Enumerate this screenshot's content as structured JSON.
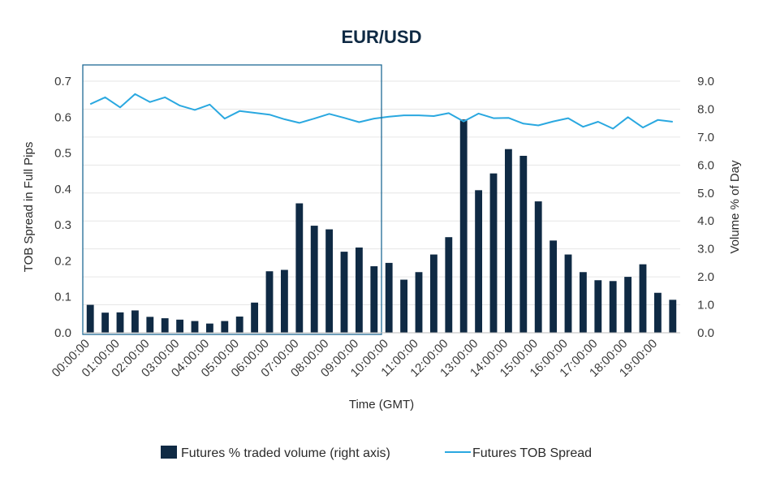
{
  "chart_data": {
    "type": "bar+line",
    "title": "EUR/USD",
    "xlabel": "Time (GMT)",
    "ylabel_left": "TOB Spread in Full Pips",
    "ylabel_right": "Volume % of Day",
    "ylim_left": [
      0,
      0.7
    ],
    "ylim_right": [
      0,
      9.0
    ],
    "left_ticks": [
      "0.0",
      "0.1",
      "0.2",
      "0.3",
      "0.4",
      "0.5",
      "0.6",
      "0.7"
    ],
    "right_ticks": [
      "0.0",
      "1.0",
      "2.0",
      "3.0",
      "4.0",
      "5.0",
      "6.0",
      "7.0",
      "8.0",
      "9.0"
    ],
    "x_tick_labels": [
      "00:00:00",
      "01:00:00",
      "02:00:00",
      "03:00:00",
      "04:00:00",
      "05:00:00",
      "06:00:00",
      "07:00:00",
      "08:00:00",
      "09:00:00",
      "10:00:00",
      "11:00:00",
      "12:00:00",
      "13:00:00",
      "14:00:00",
      "15:00:00",
      "16:00:00",
      "17:00:00",
      "18:00:00",
      "19:00:00"
    ],
    "grid": true,
    "legend_position": "bottom",
    "highlight_box": {
      "from_index": 0,
      "to_index": 19,
      "note": "outlined period 00:00 - 09:30 (spread axis)"
    },
    "series": [
      {
        "name": "Futures % traded volume (right axis)",
        "type": "bar",
        "axis": "right",
        "color": "#0f2a44",
        "values": [
          1.0,
          0.72,
          0.73,
          0.8,
          0.57,
          0.52,
          0.47,
          0.42,
          0.33,
          0.42,
          0.58,
          1.08,
          2.2,
          2.25,
          4.63,
          3.83,
          3.7,
          2.9,
          3.05,
          2.38,
          2.5,
          1.9,
          2.17,
          2.8,
          3.42,
          7.63,
          5.1,
          5.7,
          6.57,
          6.33,
          4.7,
          3.3,
          2.8,
          2.17,
          1.88,
          1.85,
          2.0,
          2.45,
          1.43,
          1.18
        ]
      },
      {
        "name": "Futures TOB Spread",
        "type": "line",
        "axis": "left",
        "color": "#2aa8e0",
        "values": [
          0.636,
          0.655,
          0.627,
          0.664,
          0.642,
          0.655,
          0.632,
          0.62,
          0.635,
          0.596,
          0.617,
          0.612,
          0.607,
          0.594,
          0.584,
          0.596,
          0.609,
          0.598,
          0.586,
          0.596,
          0.601,
          0.605,
          0.605,
          0.603,
          0.611,
          0.588,
          0.61,
          0.597,
          0.598,
          0.582,
          0.577,
          0.588,
          0.597,
          0.573,
          0.587,
          0.568,
          0.6,
          0.571,
          0.592,
          0.587
        ]
      }
    ]
  }
}
